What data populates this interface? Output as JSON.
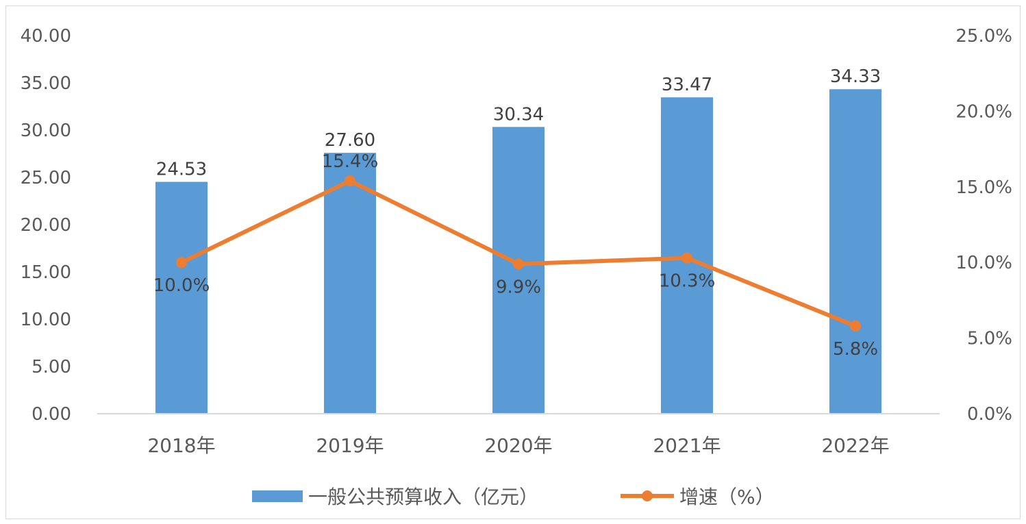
{
  "chart_data": {
    "type": "bar",
    "categories": [
      "2018年",
      "2019年",
      "2020年",
      "2021年",
      "2022年"
    ],
    "series": [
      {
        "name": "一般公共预算收入（亿元）",
        "type": "bar",
        "axis": "left",
        "values": [
          24.53,
          27.6,
          30.34,
          33.47,
          34.33
        ],
        "labels": [
          "24.53",
          "27.60",
          "30.34",
          "33.47",
          "34.33"
        ],
        "color": "#5b9bd5"
      },
      {
        "name": "增速（%）",
        "type": "line",
        "axis": "right",
        "values": [
          10.0,
          15.4,
          9.9,
          10.3,
          5.8
        ],
        "labels": [
          "10.0%",
          "15.4%",
          "9.9%",
          "10.3%",
          "5.8%"
        ],
        "color": "#ed7d31"
      }
    ],
    "y_left": {
      "min": 0,
      "max": 40,
      "step": 5,
      "ticks": [
        "0.00",
        "5.00",
        "10.00",
        "15.00",
        "20.00",
        "25.00",
        "30.00",
        "35.00",
        "40.00"
      ]
    },
    "y_right": {
      "min": 0,
      "max": 25,
      "step": 5,
      "ticks": [
        "0.0%",
        "5.0%",
        "10.0%",
        "15.0%",
        "20.0%",
        "25.0%"
      ]
    },
    "grid": false,
    "legend_position": "bottom"
  }
}
